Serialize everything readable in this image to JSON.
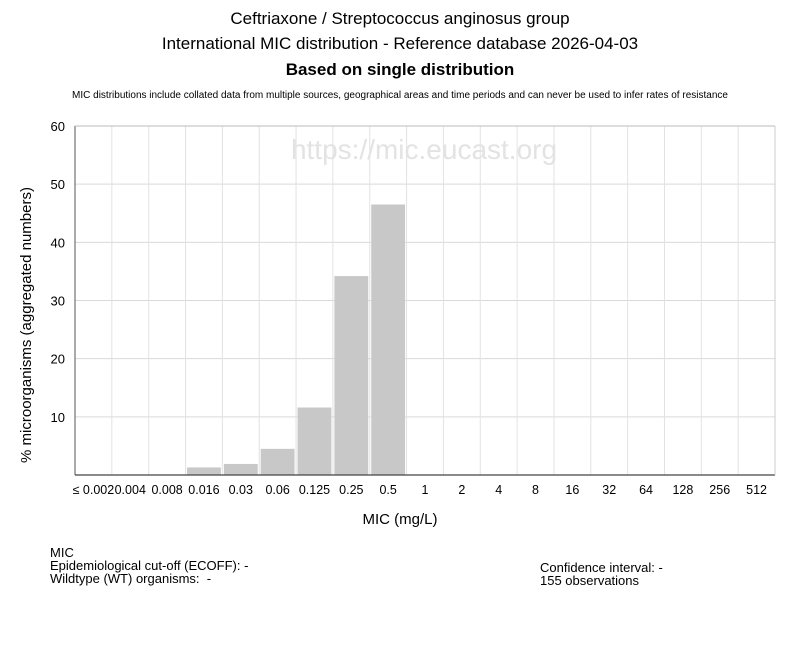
{
  "header": {
    "title_line1": "Ceftriaxone / Streptococcus anginosus group",
    "title_line2": "International MIC distribution - Reference database 2026-04-03",
    "title_line3": "Based on single distribution",
    "disclaimer": "MIC distributions include collated data from multiple sources, geographical areas and time periods and can never be used to infer rates of resistance"
  },
  "watermark": "https://mic.eucast.org",
  "chart_data": {
    "type": "bar",
    "title": "Ceftriaxone / Streptococcus anginosus group",
    "xlabel": "MIC (mg/L)",
    "ylabel": "% microorganisms (aggregated numbers)",
    "ylim": [
      0,
      60
    ],
    "yticks": [
      10,
      20,
      30,
      40,
      50,
      60
    ],
    "categories": [
      "≤ 0.002",
      "0.004",
      "0.008",
      "0.016",
      "0.03",
      "0.06",
      "0.125",
      "0.25",
      "0.5",
      "1",
      "2",
      "4",
      "8",
      "16",
      "32",
      "64",
      "128",
      "256",
      "512"
    ],
    "values": [
      0,
      0,
      0,
      1.3,
      1.9,
      4.5,
      11.6,
      34.2,
      46.5,
      0,
      0,
      0,
      0,
      0,
      0,
      0,
      0,
      0,
      0
    ],
    "bar_color": "#c8c8c8",
    "grid": true
  },
  "footer": {
    "left": {
      "line1": "MIC",
      "line2": "Epidemiological cut-off (ECOFF): -",
      "line3": "Wildtype (WT) organisms:  -"
    },
    "right": {
      "line1": "Confidence interval: -",
      "line2": "155 observations"
    }
  }
}
